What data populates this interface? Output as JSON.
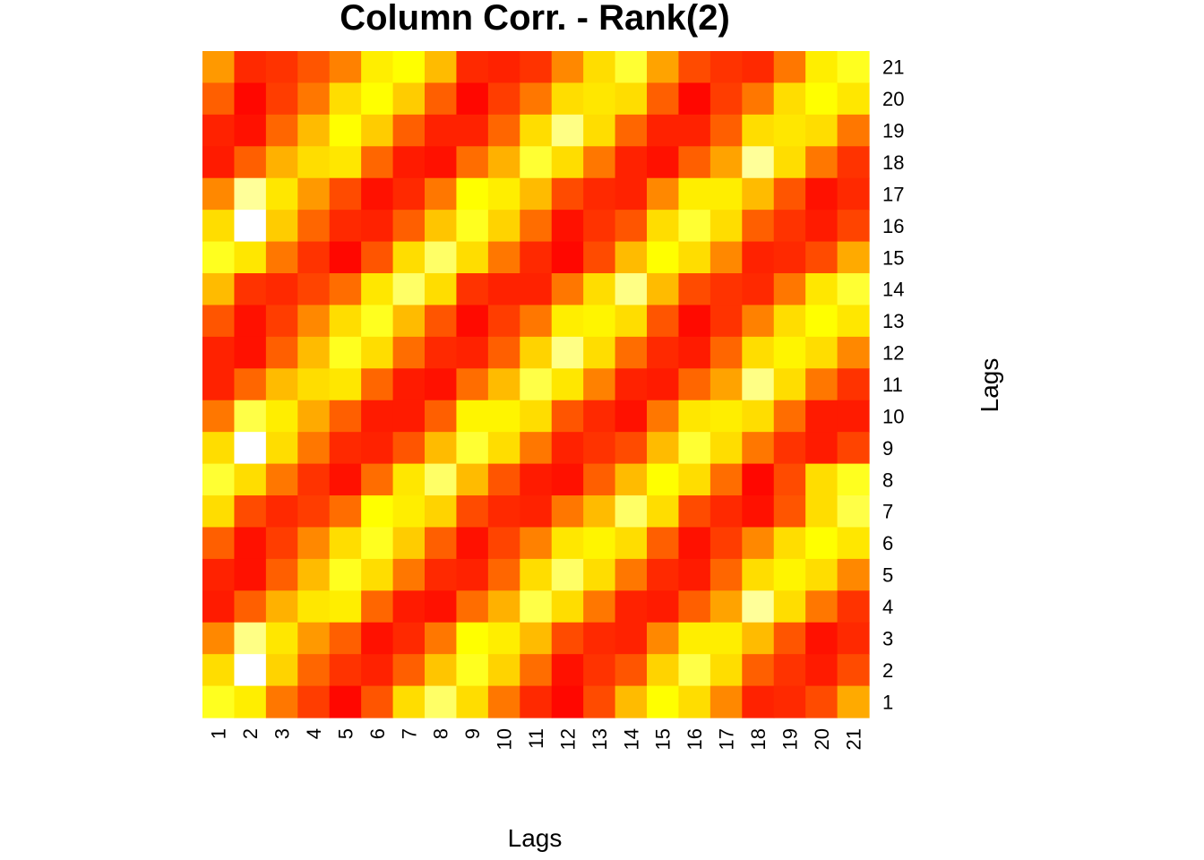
{
  "chart_data": {
    "type": "heatmap",
    "title": "Column Corr. - Rank(2)",
    "xlabel": "Lags",
    "ylabel": "Lags",
    "x_categories": [
      "1",
      "2",
      "3",
      "4",
      "5",
      "6",
      "7",
      "8",
      "9",
      "10",
      "11",
      "12",
      "13",
      "14",
      "15",
      "16",
      "17",
      "18",
      "19",
      "20",
      "21"
    ],
    "y_categories": [
      "1",
      "2",
      "3",
      "4",
      "5",
      "6",
      "7",
      "8",
      "9",
      "10",
      "11",
      "12",
      "13",
      "14",
      "15",
      "16",
      "17",
      "18",
      "19",
      "20",
      "21"
    ],
    "color_scale": "heat (red = low, yellow, white = high)",
    "value_range": [
      0,
      1
    ],
    "grid": false,
    "rows_top_to_bottom": [
      [
        0.45,
        0.12,
        0.15,
        0.25,
        0.38,
        0.7,
        0.75,
        0.55,
        0.12,
        0.1,
        0.15,
        0.4,
        0.65,
        0.8,
        0.48,
        0.22,
        0.15,
        0.12,
        0.35,
        0.7,
        0.78
      ],
      [
        0.28,
        0.02,
        0.18,
        0.35,
        0.65,
        0.75,
        0.6,
        0.28,
        0.02,
        0.18,
        0.35,
        0.65,
        0.68,
        0.65,
        0.28,
        0.02,
        0.18,
        0.35,
        0.65,
        0.75,
        0.68
      ],
      [
        0.1,
        0.05,
        0.3,
        0.55,
        0.75,
        0.6,
        0.28,
        0.1,
        0.1,
        0.3,
        0.65,
        0.88,
        0.65,
        0.3,
        0.1,
        0.1,
        0.28,
        0.65,
        0.68,
        0.65,
        0.35
      ],
      [
        0.08,
        0.28,
        0.52,
        0.65,
        0.68,
        0.3,
        0.08,
        0.05,
        0.32,
        0.52,
        0.8,
        0.65,
        0.35,
        0.1,
        0.05,
        0.28,
        0.48,
        0.9,
        0.65,
        0.35,
        0.15
      ],
      [
        0.4,
        0.9,
        0.68,
        0.45,
        0.22,
        0.05,
        0.12,
        0.35,
        0.75,
        0.7,
        0.55,
        0.22,
        0.12,
        0.1,
        0.4,
        0.7,
        0.7,
        0.55,
        0.25,
        0.05,
        0.12
      ],
      [
        0.65,
        1.0,
        0.6,
        0.3,
        0.12,
        0.1,
        0.28,
        0.58,
        0.78,
        0.62,
        0.32,
        0.05,
        0.15,
        0.25,
        0.65,
        0.8,
        0.65,
        0.28,
        0.15,
        0.08,
        0.2
      ],
      [
        0.78,
        0.68,
        0.35,
        0.15,
        0.02,
        0.25,
        0.65,
        0.85,
        0.65,
        0.35,
        0.12,
        0.02,
        0.22,
        0.55,
        0.75,
        0.65,
        0.4,
        0.1,
        0.12,
        0.22,
        0.5
      ],
      [
        0.55,
        0.15,
        0.12,
        0.2,
        0.32,
        0.68,
        0.85,
        0.65,
        0.15,
        0.1,
        0.1,
        0.35,
        0.65,
        0.88,
        0.55,
        0.22,
        0.15,
        0.12,
        0.35,
        0.68,
        0.8
      ],
      [
        0.25,
        0.05,
        0.18,
        0.4,
        0.65,
        0.78,
        0.55,
        0.25,
        0.03,
        0.18,
        0.35,
        0.7,
        0.72,
        0.65,
        0.25,
        0.03,
        0.15,
        0.38,
        0.65,
        0.75,
        0.68
      ],
      [
        0.1,
        0.05,
        0.28,
        0.55,
        0.78,
        0.65,
        0.32,
        0.12,
        0.1,
        0.28,
        0.62,
        0.88,
        0.65,
        0.32,
        0.12,
        0.08,
        0.3,
        0.65,
        0.72,
        0.65,
        0.4
      ],
      [
        0.1,
        0.3,
        0.55,
        0.65,
        0.68,
        0.3,
        0.08,
        0.05,
        0.32,
        0.55,
        0.82,
        0.68,
        0.38,
        0.1,
        0.08,
        0.3,
        0.48,
        0.88,
        0.65,
        0.35,
        0.15
      ],
      [
        0.35,
        0.82,
        0.7,
        0.5,
        0.28,
        0.08,
        0.08,
        0.28,
        0.72,
        0.72,
        0.65,
        0.25,
        0.12,
        0.05,
        0.35,
        0.68,
        0.7,
        0.65,
        0.32,
        0.08,
        0.08
      ],
      [
        0.65,
        1.0,
        0.65,
        0.35,
        0.12,
        0.1,
        0.25,
        0.55,
        0.8,
        0.65,
        0.35,
        0.1,
        0.15,
        0.22,
        0.55,
        0.8,
        0.65,
        0.35,
        0.15,
        0.08,
        0.2
      ],
      [
        0.8,
        0.65,
        0.35,
        0.15,
        0.05,
        0.32,
        0.68,
        0.85,
        0.55,
        0.25,
        0.08,
        0.05,
        0.28,
        0.55,
        0.75,
        0.65,
        0.32,
        0.02,
        0.22,
        0.65,
        0.78
      ],
      [
        0.65,
        0.22,
        0.12,
        0.18,
        0.32,
        0.75,
        0.7,
        0.62,
        0.22,
        0.12,
        0.1,
        0.35,
        0.55,
        0.85,
        0.65,
        0.22,
        0.12,
        0.05,
        0.25,
        0.65,
        0.82
      ],
      [
        0.28,
        0.05,
        0.18,
        0.4,
        0.65,
        0.78,
        0.6,
        0.28,
        0.05,
        0.2,
        0.38,
        0.68,
        0.72,
        0.65,
        0.28,
        0.05,
        0.18,
        0.4,
        0.65,
        0.75,
        0.68
      ],
      [
        0.1,
        0.05,
        0.28,
        0.55,
        0.78,
        0.65,
        0.35,
        0.12,
        0.1,
        0.3,
        0.65,
        0.85,
        0.65,
        0.35,
        0.12,
        0.08,
        0.3,
        0.65,
        0.72,
        0.65,
        0.4
      ],
      [
        0.08,
        0.28,
        0.52,
        0.68,
        0.7,
        0.3,
        0.08,
        0.05,
        0.32,
        0.52,
        0.82,
        0.65,
        0.35,
        0.1,
        0.08,
        0.28,
        0.48,
        0.9,
        0.65,
        0.35,
        0.15
      ],
      [
        0.4,
        0.88,
        0.68,
        0.45,
        0.28,
        0.05,
        0.12,
        0.35,
        0.75,
        0.7,
        0.55,
        0.22,
        0.12,
        0.1,
        0.4,
        0.7,
        0.7,
        0.55,
        0.25,
        0.05,
        0.12
      ],
      [
        0.65,
        1.0,
        0.62,
        0.3,
        0.15,
        0.1,
        0.28,
        0.58,
        0.78,
        0.62,
        0.32,
        0.05,
        0.15,
        0.25,
        0.62,
        0.82,
        0.65,
        0.28,
        0.15,
        0.08,
        0.22
      ],
      [
        0.78,
        0.7,
        0.35,
        0.18,
        0.02,
        0.25,
        0.65,
        0.85,
        0.65,
        0.35,
        0.12,
        0.02,
        0.22,
        0.55,
        0.75,
        0.65,
        0.4,
        0.1,
        0.12,
        0.22,
        0.5
      ]
    ]
  }
}
